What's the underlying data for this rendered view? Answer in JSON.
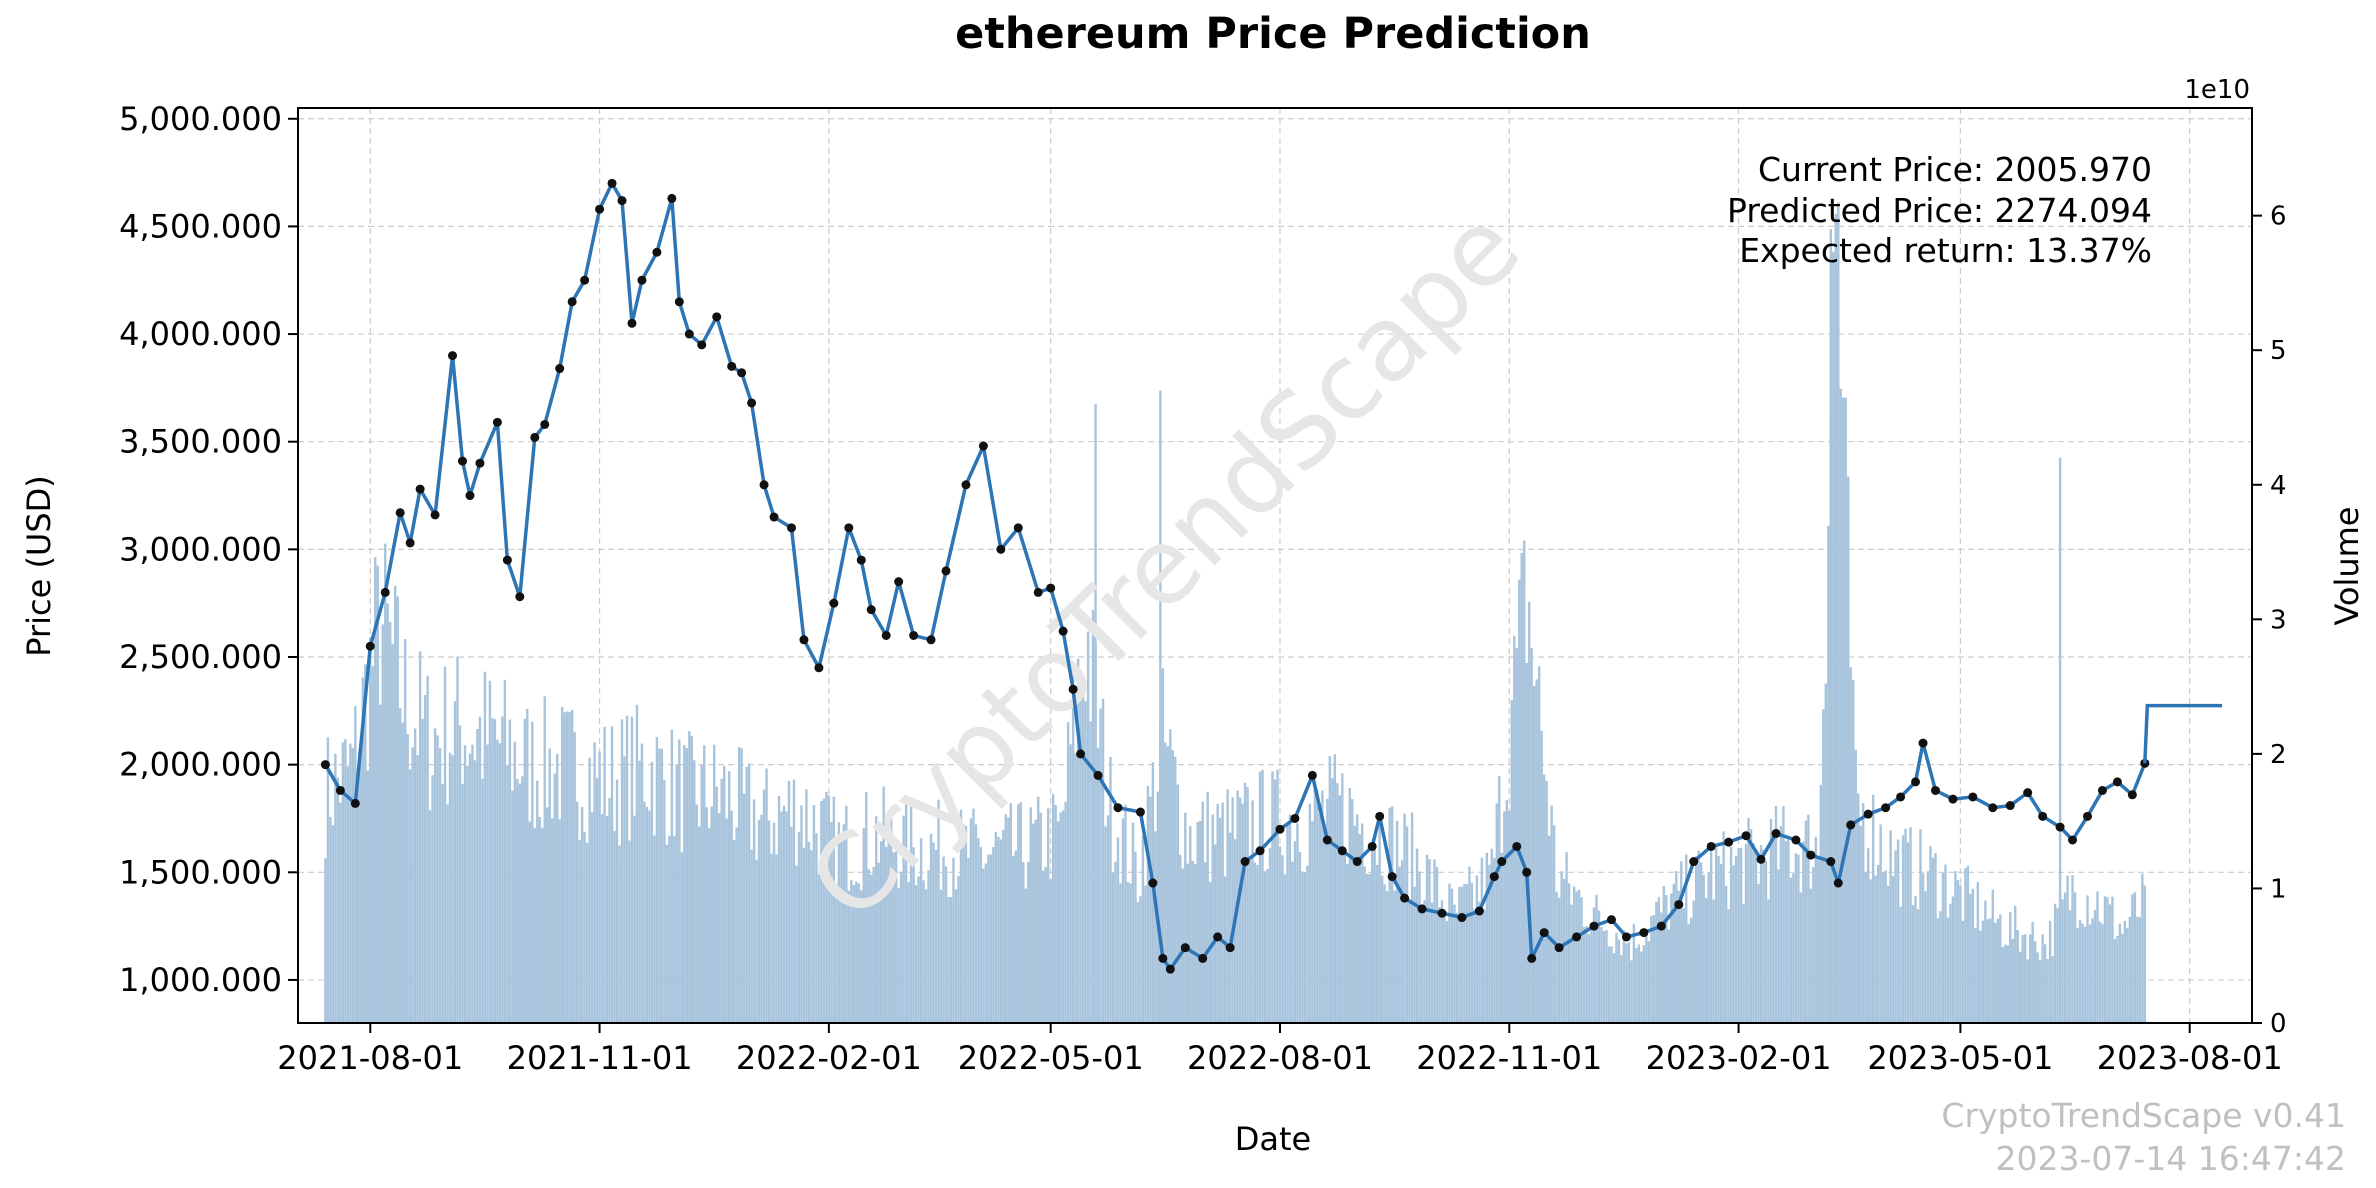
{
  "chart_data": {
    "type": "line",
    "title": "ethereum Price Prediction",
    "xlabel": "Date",
    "ylabel": "Price (USD)",
    "y2label": "Volume",
    "y2_offset_label": "1e10",
    "x_ticks": [
      "2021-08-01",
      "2021-11-01",
      "2022-02-01",
      "2022-05-01",
      "2022-08-01",
      "2022-11-01",
      "2023-02-01",
      "2023-05-01",
      "2023-08-01"
    ],
    "y_ticks": [
      "1,000.000",
      "1,500.000",
      "2,000.000",
      "2,500.000",
      "3,000.000",
      "3,500.000",
      "4,000.000",
      "4,500.000",
      "5,000.000"
    ],
    "y2_ticks": [
      "0",
      "1",
      "2",
      "3",
      "4",
      "5",
      "6"
    ],
    "xlim": [
      "2021-07-03",
      "2023-08-26"
    ],
    "ylim": [
      800,
      5050
    ],
    "y2lim": [
      0,
      6.8
    ],
    "grid": true,
    "series": [
      {
        "role": "price",
        "x": [
          "2021-07-14",
          "2021-07-20",
          "2021-07-26",
          "2021-08-01",
          "2021-08-07",
          "2021-08-13",
          "2021-08-17",
          "2021-08-21",
          "2021-08-27",
          "2021-09-03",
          "2021-09-07",
          "2021-09-10",
          "2021-09-14",
          "2021-09-21",
          "2021-09-25",
          "2021-09-30",
          "2021-10-06",
          "2021-10-10",
          "2021-10-16",
          "2021-10-21",
          "2021-10-26",
          "2021-11-01",
          "2021-11-06",
          "2021-11-10",
          "2021-11-14",
          "2021-11-18",
          "2021-11-24",
          "2021-11-30",
          "2021-12-03",
          "2021-12-07",
          "2021-12-12",
          "2021-12-18",
          "2021-12-24",
          "2021-12-28",
          "2022-01-01",
          "2022-01-06",
          "2022-01-10",
          "2022-01-17",
          "2022-01-22",
          "2022-01-28",
          "2022-02-03",
          "2022-02-09",
          "2022-02-14",
          "2022-02-18",
          "2022-02-24",
          "2022-03-01",
          "2022-03-07",
          "2022-03-14",
          "2022-03-20",
          "2022-03-28",
          "2022-04-04",
          "2022-04-11",
          "2022-04-18",
          "2022-04-26",
          "2022-05-01",
          "2022-05-06",
          "2022-05-10",
          "2022-05-13",
          "2022-05-20",
          "2022-05-28",
          "2022-06-06",
          "2022-06-11",
          "2022-06-15",
          "2022-06-18",
          "2022-06-24",
          "2022-07-01",
          "2022-07-07",
          "2022-07-12",
          "2022-07-18",
          "2022-07-24",
          "2022-08-01",
          "2022-08-07",
          "2022-08-14",
          "2022-08-20",
          "2022-08-26",
          "2022-09-01",
          "2022-09-07",
          "2022-09-10",
          "2022-09-15",
          "2022-09-20",
          "2022-09-27",
          "2022-10-05",
          "2022-10-13",
          "2022-10-20",
          "2022-10-26",
          "2022-10-29",
          "2022-11-04",
          "2022-11-08",
          "2022-11-10",
          "2022-11-15",
          "2022-11-21",
          "2022-11-28",
          "2022-12-05",
          "2022-12-12",
          "2022-12-18",
          "2022-12-25",
          "2023-01-01",
          "2023-01-08",
          "2023-01-14",
          "2023-01-21",
          "2023-01-28",
          "2023-02-04",
          "2023-02-10",
          "2023-02-16",
          "2023-02-24",
          "2023-03-02",
          "2023-03-10",
          "2023-03-13",
          "2023-03-18",
          "2023-03-25",
          "2023-04-01",
          "2023-04-07",
          "2023-04-13",
          "2023-04-16",
          "2023-04-21",
          "2023-04-28",
          "2023-05-06",
          "2023-05-14",
          "2023-05-21",
          "2023-05-28",
          "2023-06-03",
          "2023-06-10",
          "2023-06-15",
          "2023-06-21",
          "2023-06-27",
          "2023-07-03",
          "2023-07-09",
          "2023-07-14"
        ],
        "y": [
          2000,
          1880,
          1820,
          2550,
          2800,
          3170,
          3030,
          3280,
          3160,
          3900,
          3410,
          3250,
          3400,
          3590,
          2950,
          2780,
          3520,
          3580,
          3840,
          4150,
          4250,
          4580,
          4700,
          4620,
          4050,
          4250,
          4380,
          4630,
          4150,
          4000,
          3950,
          4080,
          3850,
          3820,
          3680,
          3300,
          3150,
          3100,
          2580,
          2450,
          2750,
          3100,
          2950,
          2720,
          2600,
          2850,
          2600,
          2580,
          2900,
          3300,
          3480,
          3000,
          3100,
          2800,
          2820,
          2620,
          2350,
          2050,
          1950,
          1800,
          1780,
          1450,
          1100,
          1050,
          1150,
          1100,
          1200,
          1150,
          1550,
          1600,
          1700,
          1750,
          1950,
          1650,
          1600,
          1550,
          1620,
          1760,
          1480,
          1380,
          1330,
          1310,
          1290,
          1320,
          1480,
          1550,
          1620,
          1500,
          1100,
          1220,
          1150,
          1200,
          1250,
          1280,
          1200,
          1220,
          1250,
          1350,
          1550,
          1620,
          1640,
          1670,
          1560,
          1680,
          1650,
          1580,
          1550,
          1450,
          1720,
          1770,
          1800,
          1850,
          1920,
          2100,
          1880,
          1840,
          1850,
          1800,
          1810,
          1870,
          1760,
          1710,
          1650,
          1760,
          1880,
          1920,
          1860,
          2006
        ]
      },
      {
        "role": "prediction",
        "x": [
          "2023-07-14",
          "2023-07-15",
          "2023-08-14"
        ],
        "y": [
          2006,
          2274,
          2274
        ]
      },
      {
        "role": "volume",
        "scale": "1e10",
        "x": [
          "2021-07-14",
          "2021-07-25",
          "2021-08-05",
          "2021-08-15",
          "2021-08-25",
          "2021-09-05",
          "2021-09-20",
          "2021-10-05",
          "2021-10-20",
          "2021-11-05",
          "2021-11-20",
          "2021-12-05",
          "2021-12-20",
          "2022-01-05",
          "2022-01-20",
          "2022-02-05",
          "2022-02-20",
          "2022-03-05",
          "2022-03-20",
          "2022-04-05",
          "2022-04-20",
          "2022-05-05",
          "2022-05-15",
          "2022-05-25",
          "2022-06-05",
          "2022-06-15",
          "2022-06-25",
          "2022-07-10",
          "2022-07-25",
          "2022-08-10",
          "2022-08-25",
          "2022-09-10",
          "2022-09-25",
          "2022-10-10",
          "2022-10-25",
          "2022-11-08",
          "2022-11-20",
          "2022-12-05",
          "2022-12-20",
          "2023-01-05",
          "2023-01-20",
          "2023-02-05",
          "2023-02-20",
          "2023-03-05",
          "2023-03-12",
          "2023-03-20",
          "2023-04-05",
          "2023-04-20",
          "2023-05-05",
          "2023-05-20",
          "2023-06-05",
          "2023-06-15",
          "2023-06-25",
          "2023-07-05",
          "2023-07-14"
        ],
        "y": [
          1.7,
          1.9,
          3.0,
          2.4,
          2.1,
          2.2,
          2.1,
          1.9,
          1.9,
          1.8,
          1.9,
          1.7,
          1.7,
          1.5,
          1.6,
          1.3,
          1.4,
          1.3,
          1.3,
          1.25,
          1.3,
          1.4,
          2.9,
          1.6,
          1.1,
          2.1,
          1.4,
          1.4,
          1.5,
          1.5,
          1.6,
          1.4,
          1.2,
          0.8,
          1.1,
          3.2,
          1.1,
          0.8,
          0.6,
          0.9,
          1.1,
          1.2,
          1.3,
          1.3,
          6.0,
          1.6,
          1.2,
          1.1,
          0.9,
          0.7,
          0.6,
          1.0,
          0.9,
          0.7,
          0.9
        ],
        "spikes": [
          {
            "x": "2022-05-19",
            "y": 4.6
          },
          {
            "x": "2022-06-14",
            "y": 4.7
          },
          {
            "x": "2023-03-10",
            "y": 5.9
          },
          {
            "x": "2023-03-13",
            "y": 6.1
          },
          {
            "x": "2023-06-10",
            "y": 4.2
          }
        ]
      }
    ]
  },
  "annotation": {
    "current": "Current Price: 2005.970",
    "predicted": "Predicted Price: 2274.094",
    "expected_return": "Expected return: 13.37%"
  },
  "watermark": "CryptoTrendScape",
  "footer": {
    "version": "CryptoTrendScape v0.41",
    "timestamp": "2023-07-14 16:47:42"
  },
  "colors": {
    "price_line": "#2e75b6",
    "marker": "#111111",
    "volume": "#a8c4dc",
    "grid": "#cccccc",
    "watermark": "#e6e6e6",
    "footer": "#c0c0c0"
  }
}
